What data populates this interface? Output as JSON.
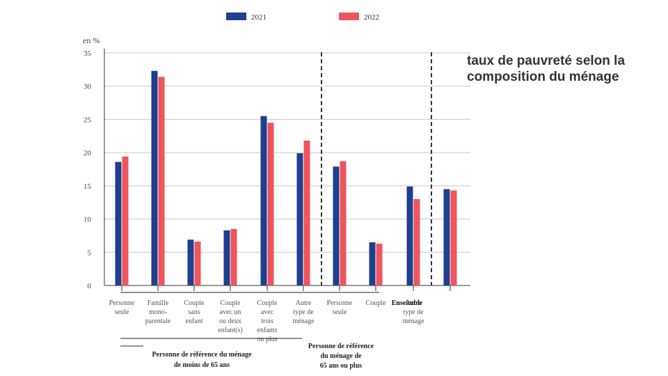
{
  "side_title": "taux de pauvreté selon la composition du ménage",
  "colors": {
    "s2021": "#1f3f8f",
    "s2022": "#f0545c",
    "grid": "#c8c8c8",
    "axis": "#333333",
    "text": "#444444"
  },
  "chart_data": {
    "type": "bar",
    "title": "",
    "ylabel": "en %",
    "xlabel": "",
    "ylim": [
      0,
      35
    ],
    "yticks": [
      0,
      5,
      10,
      15,
      20,
      25,
      30,
      35
    ],
    "grid": true,
    "legend_position": "top",
    "categories": [
      {
        "lines": [
          "Personne",
          "seule"
        ]
      },
      {
        "lines": [
          "Famille",
          "mono-",
          "parentale"
        ]
      },
      {
        "lines": [
          "Couple",
          "sans",
          "enfant"
        ]
      },
      {
        "lines": [
          "Couple",
          "avec un",
          "ou deux",
          "enfant(s)"
        ]
      },
      {
        "lines": [
          "Couple",
          "avec",
          "trois",
          "enfants",
          "ou plus"
        ]
      },
      {
        "lines": [
          "Autre",
          "type de",
          "ménage"
        ]
      },
      {
        "lines": [
          "Personne",
          "seule"
        ]
      },
      {
        "lines": [
          "Couple"
        ]
      },
      {
        "lines": [
          "Autre",
          "type de",
          "ménage"
        ]
      },
      {
        "lines": []
      }
    ],
    "overlap_label": "Enseimble",
    "series": [
      {
        "name": "2021",
        "values": [
          18.6,
          32.3,
          6.9,
          8.3,
          25.5,
          19.9,
          17.9,
          6.5,
          14.9,
          14.5
        ]
      },
      {
        "name": "2022",
        "values": [
          19.4,
          31.4,
          6.6,
          8.5,
          24.5,
          21.8,
          18.7,
          6.3,
          13.0,
          14.3
        ]
      }
    ],
    "groups": [
      {
        "lines": [
          "Personne de référence du ménage",
          "de moins de 65 ans"
        ]
      },
      {
        "lines": [
          "Personne de référence",
          "du ménage de",
          "65 ans ou plus"
        ]
      }
    ]
  }
}
